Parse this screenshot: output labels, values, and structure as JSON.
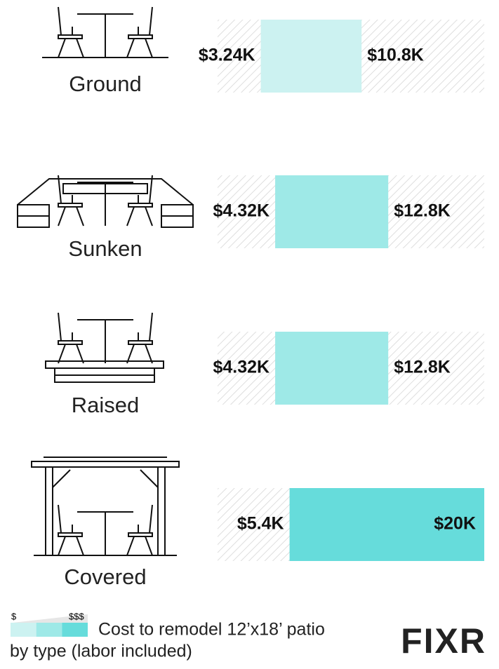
{
  "chart_data": {
    "type": "range-bar",
    "categories": [
      "Ground",
      "Sunken",
      "Raised",
      "Covered"
    ],
    "low": {
      "values": [
        3240,
        4320,
        4320,
        5400
      ],
      "value_labels": [
        "$3.24K",
        "$4.32K",
        "$4.32K",
        "$5.4K"
      ]
    },
    "high": {
      "values": [
        10800,
        12800,
        12800,
        20000
      ],
      "value_labels": [
        "$10.8K",
        "$12.8K",
        "$12.8K",
        "$20K"
      ]
    },
    "colors": [
      "#ccf2f1",
      "#9ee9e7",
      "#9ee9e7",
      "#66dcdb"
    ],
    "xlim": [
      0,
      20000
    ],
    "legend": {
      "low_label": "$",
      "high_label": "$$$",
      "colors": [
        "#ccf2f1",
        "#9ee9e7",
        "#66dcdb"
      ]
    },
    "caption_lines": [
      "Cost to remodel 12’x18’ patio",
      "by type (labor included)"
    ],
    "logo": "FIXR"
  }
}
